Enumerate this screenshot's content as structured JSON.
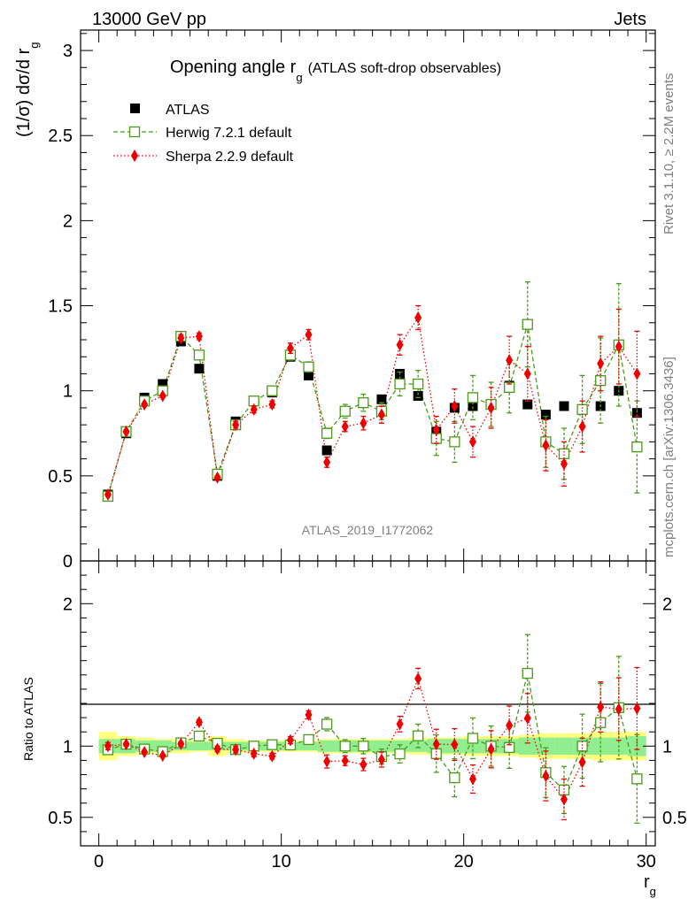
{
  "header": {
    "energy_label": "13000 GeV pp",
    "process_label": "Jets",
    "rivet_label": "Rivet 3.1.10, ≥ 2.2M events",
    "mcplots_label": "mcplots.cern.ch [arXiv:1306.3436]"
  },
  "chart_data": {
    "type": "scatter",
    "title": "Opening angle r",
    "title_sub": "g",
    "title_suffix": "(ATLAS soft-drop observables)",
    "analysis_id": "ATLAS_2019_I1772062",
    "ylabel_main": "(1/σ) dσ/d r",
    "ylabel_main_sub": "g",
    "ylabel_ratio": "Ratio to ATLAS",
    "xlabel": "r",
    "xlabel_sub": "g",
    "xlim": [
      -1,
      30.5
    ],
    "ylim_main": [
      0,
      3.12
    ],
    "ylim_ratio": [
      0.3,
      2.3
    ],
    "x_ticks": [
      "0",
      "10",
      "20",
      "30"
    ],
    "y_ticks_main": [
      "0",
      "0.5",
      "1",
      "1.5",
      "2",
      "2.5",
      "3"
    ],
    "y_ticks_ratio": [
      "0.5",
      "1",
      "2"
    ],
    "x": [
      0.5,
      1.5,
      2.5,
      3.5,
      4.5,
      5.5,
      6.5,
      7.5,
      8.5,
      9.5,
      10.5,
      11.5,
      12.5,
      13.5,
      14.5,
      15.5,
      16.5,
      17.5,
      18.5,
      19.5,
      20.5,
      21.5,
      22.5,
      23.5,
      24.5,
      25.5,
      26.5,
      27.5,
      28.5,
      29.5
    ],
    "legend": {
      "atlas": "ATLAS",
      "herwig": "Herwig 7.2.1 default",
      "sherpa": "Sherpa 2.2.9 default"
    },
    "colors": {
      "atlas": "#000000",
      "herwig": "#4c9a1a",
      "sherpa": "#ee0000",
      "band_inner": "#90ee90",
      "band_outer": "#ffff80"
    },
    "series": [
      {
        "name": "ATLAS",
        "values": [
          0.39,
          0.75,
          0.96,
          1.04,
          1.29,
          1.13,
          0.5,
          0.82,
          0.94,
          0.99,
          1.2,
          1.09,
          0.65,
          0.88,
          0.93,
          0.95,
          1.1,
          0.97,
          0.76,
          0.9,
          0.91,
          0.92,
          1.03,
          0.92,
          0.86,
          0.91,
          0.89,
          0.91,
          1.0,
          0.87
        ]
      },
      {
        "name": "Herwig 7.2.1 default",
        "values": [
          0.38,
          0.76,
          0.94,
          1.0,
          1.32,
          1.21,
          0.51,
          0.8,
          0.94,
          1.0,
          1.21,
          1.14,
          0.75,
          0.88,
          0.93,
          0.88,
          1.04,
          1.04,
          0.72,
          0.7,
          0.96,
          0.92,
          1.02,
          1.39,
          0.7,
          0.63,
          0.89,
          1.06,
          1.27,
          0.67
        ],
        "errors": [
          0.01,
          0.01,
          0.01,
          0.01,
          0.02,
          0.02,
          0.01,
          0.02,
          0.02,
          0.02,
          0.03,
          0.03,
          0.03,
          0.04,
          0.05,
          0.05,
          0.07,
          0.08,
          0.1,
          0.12,
          0.13,
          0.13,
          0.15,
          0.25,
          0.15,
          0.15,
          0.2,
          0.25,
          0.36,
          0.27
        ]
      },
      {
        "name": "Sherpa 2.2.9 default",
        "values": [
          0.39,
          0.76,
          0.92,
          0.97,
          1.31,
          1.32,
          0.49,
          0.8,
          0.89,
          0.92,
          1.25,
          1.33,
          0.58,
          0.79,
          0.81,
          0.86,
          1.27,
          1.43,
          0.77,
          0.91,
          0.7,
          0.9,
          1.18,
          1.1,
          0.68,
          0.57,
          0.79,
          1.16,
          1.26,
          1.1
        ],
        "errors": [
          0.01,
          0.01,
          0.01,
          0.01,
          0.02,
          0.02,
          0.01,
          0.02,
          0.02,
          0.02,
          0.03,
          0.03,
          0.03,
          0.03,
          0.04,
          0.05,
          0.06,
          0.07,
          0.08,
          0.1,
          0.09,
          0.12,
          0.14,
          0.16,
          0.15,
          0.13,
          0.15,
          0.16,
          0.22,
          0.25
        ]
      }
    ],
    "ratio_band_inner": [
      0.05,
      0.05,
      0.04,
      0.04,
      0.03,
      0.03,
      0.03,
      0.03,
      0.03,
      0.03,
      0.03,
      0.03,
      0.04,
      0.04,
      0.04,
      0.04,
      0.04,
      0.04,
      0.05,
      0.05,
      0.05,
      0.05,
      0.05,
      0.06,
      0.06,
      0.06,
      0.06,
      0.06,
      0.06,
      0.07
    ],
    "ratio_band_outer": [
      0.1,
      0.07,
      0.06,
      0.05,
      0.05,
      0.04,
      0.07,
      0.05,
      0.04,
      0.04,
      0.04,
      0.04,
      0.05,
      0.05,
      0.05,
      0.05,
      0.05,
      0.06,
      0.06,
      0.06,
      0.07,
      0.07,
      0.07,
      0.08,
      0.09,
      0.09,
      0.09,
      0.1,
      0.1,
      0.1
    ]
  }
}
